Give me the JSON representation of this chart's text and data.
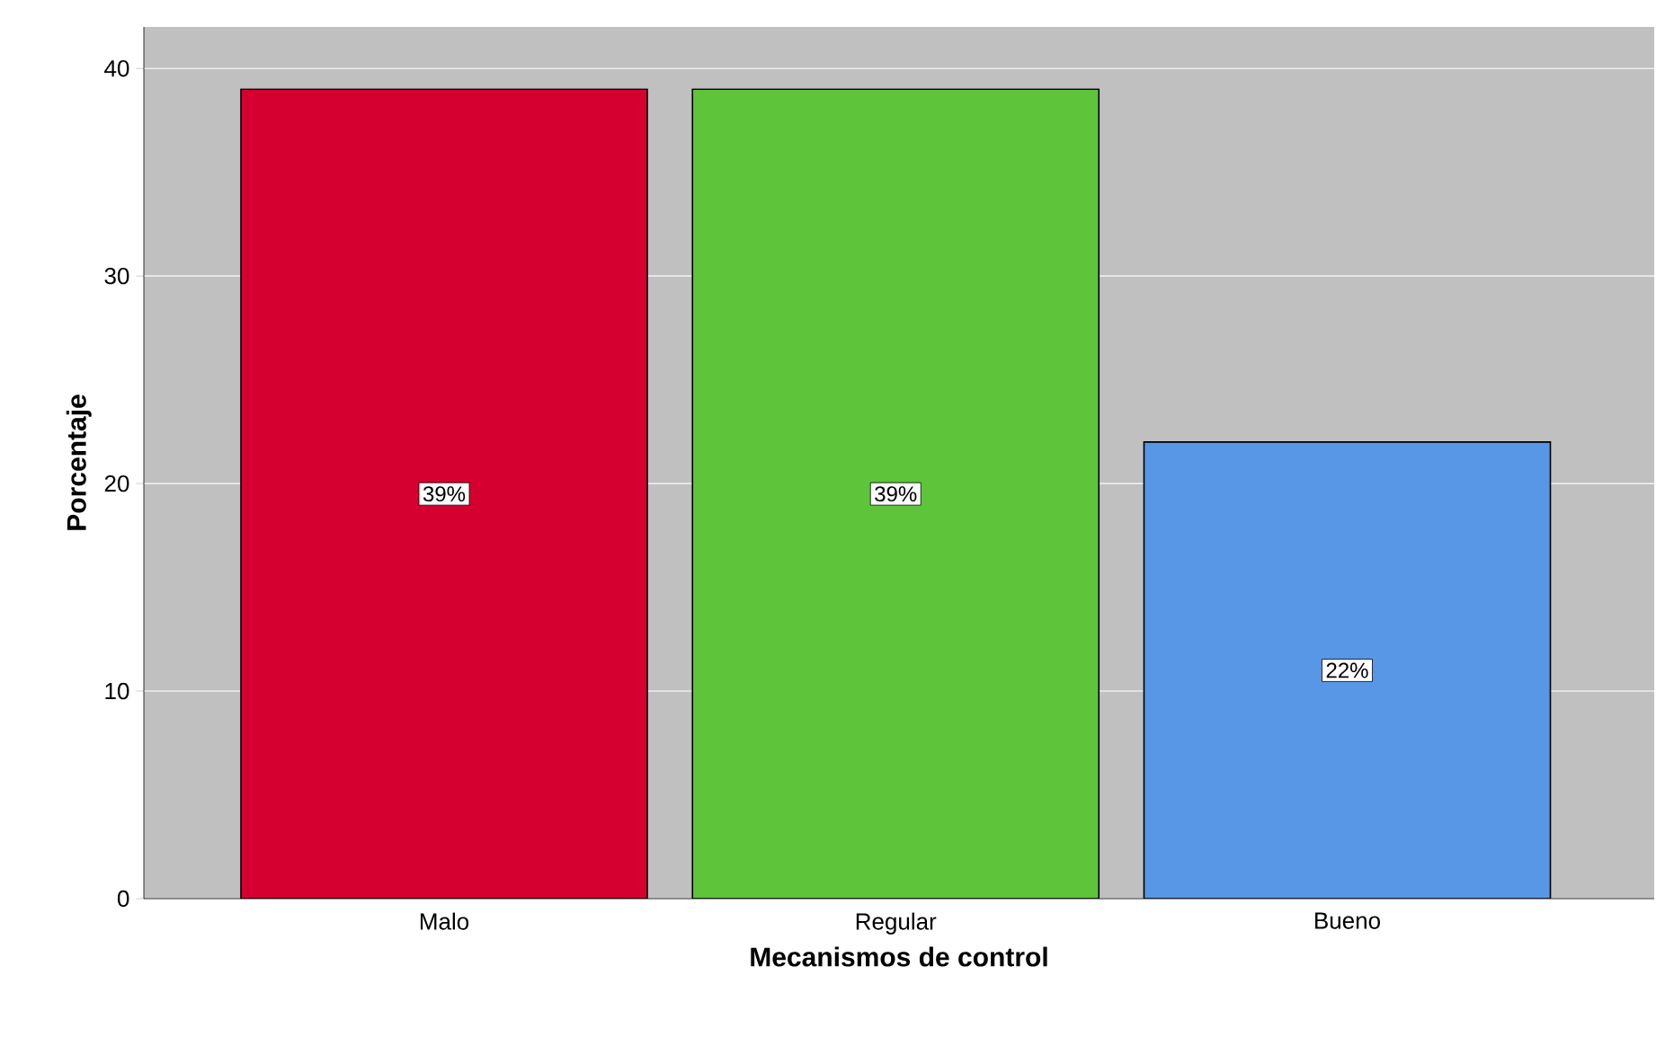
{
  "chart_data": {
    "type": "bar",
    "xlabel": "Mecanismos de control",
    "ylabel": "Porcentaje",
    "categories": [
      "Malo",
      "Regular",
      "Bueno"
    ],
    "values": [
      39,
      39,
      22
    ],
    "colors": [
      "#d5002f",
      "#5ec43a",
      "#5897e6"
    ],
    "value_labels": [
      "39%",
      "39%",
      "22%"
    ],
    "ylim": [
      0,
      42
    ],
    "yticks": [
      0,
      10,
      20,
      30,
      40
    ],
    "grid": "y"
  }
}
